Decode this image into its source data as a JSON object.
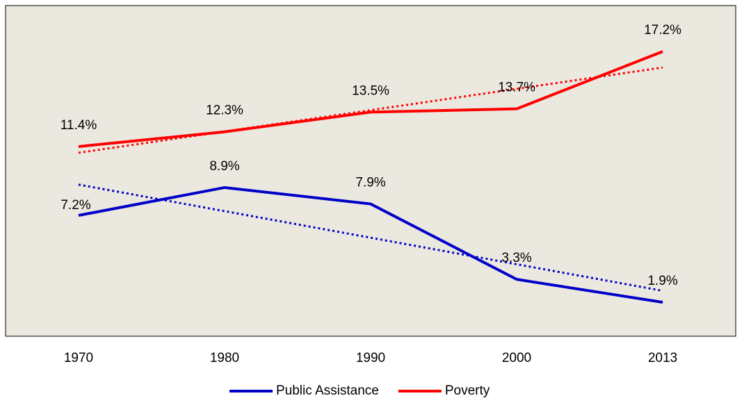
{
  "chart_data": {
    "type": "line",
    "categories": [
      "1970",
      "1980",
      "1990",
      "2000",
      "2013"
    ],
    "series": [
      {
        "name": "Public Assistance",
        "color": "#0000c8",
        "values": [
          7.2,
          8.9,
          7.9,
          3.3,
          1.9
        ],
        "value_labels": [
          "7.2%",
          "8.9%",
          "7.9%",
          "3.3%",
          "1.9%"
        ],
        "trendline": true
      },
      {
        "name": "Poverty",
        "color": "#ff0000",
        "values": [
          11.4,
          12.3,
          13.5,
          13.7,
          17.2
        ],
        "value_labels": [
          "11.4%",
          "12.3%",
          "13.5%",
          "13.7%",
          "17.2%"
        ],
        "trendline": true
      }
    ],
    "ylim": [
      0,
      20
    ],
    "grid": false,
    "legend": "bottom"
  }
}
